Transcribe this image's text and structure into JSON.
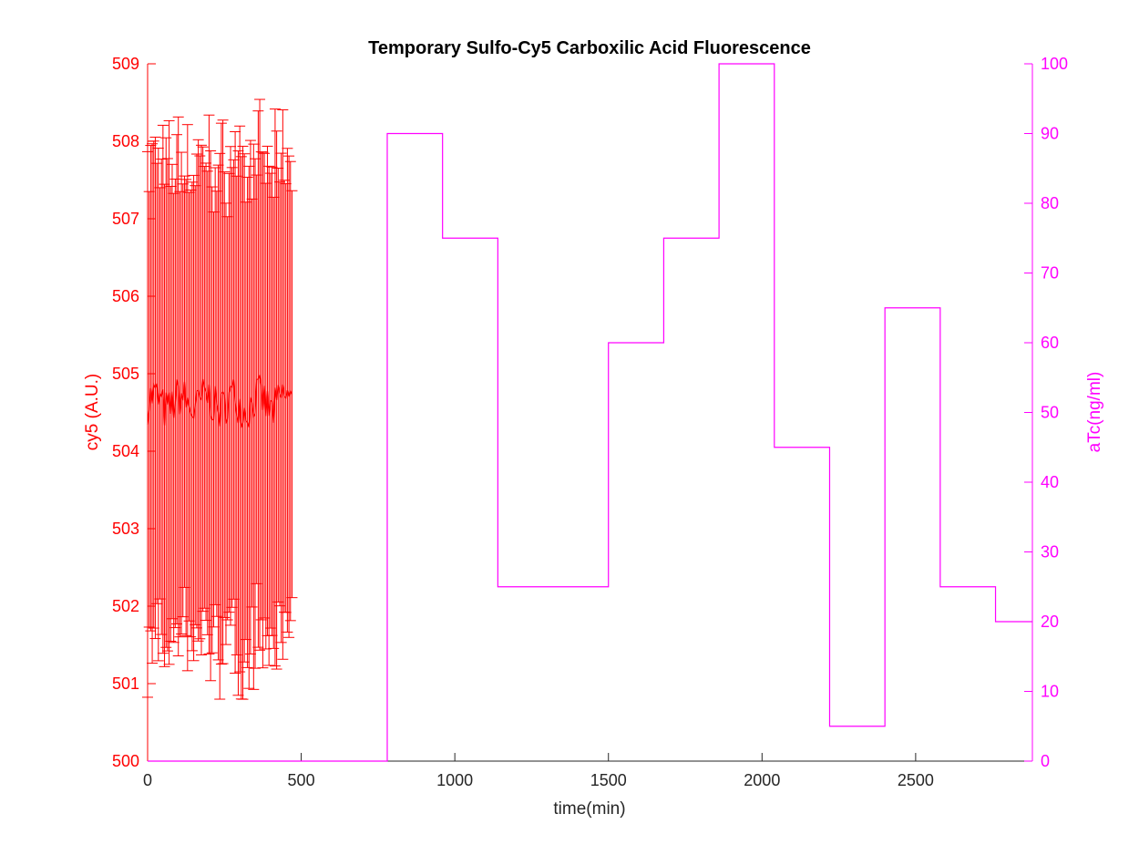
{
  "chart_data": {
    "type": "line",
    "title": "Temporary Sulfo-Cy5 Carboxilic Acid Fluorescence",
    "xlabel": "time(min)",
    "xlim": [
      0,
      2880
    ],
    "xticks": [
      0,
      500,
      1000,
      1500,
      2000,
      2500
    ],
    "x_tick_labels": [
      "0",
      "500",
      "1000",
      "1500",
      "2000",
      "2500"
    ],
    "left_axis": {
      "label": "cy5 (A.U.)",
      "color": "#ff0000",
      "ylim": [
        500,
        509
      ],
      "ticks": [
        500,
        501,
        502,
        503,
        504,
        505,
        506,
        507,
        508,
        509
      ],
      "tick_labels": [
        "500",
        "501",
        "502",
        "503",
        "504",
        "505",
        "506",
        "507",
        "508",
        "509"
      ]
    },
    "right_axis": {
      "label": "aTc(ng/ml)",
      "color": "#ff00ff",
      "ylim": [
        0,
        100
      ],
      "ticks": [
        0,
        10,
        20,
        30,
        40,
        50,
        60,
        70,
        80,
        90,
        100
      ],
      "tick_labels": [
        "0",
        "10",
        "20",
        "30",
        "40",
        "50",
        "60",
        "70",
        "80",
        "90",
        "100"
      ]
    },
    "series": [
      {
        "axis": "left",
        "type": "errorbar-line",
        "color": "#ff0000",
        "x_start": 0,
        "x_step": 5,
        "count": 95,
        "mean_min": 504.1,
        "mean_max": 505.25,
        "mean_center": 504.62,
        "error_min": 2.6,
        "error_max": 3.6
      },
      {
        "axis": "right",
        "type": "step",
        "color": "#ff00ff",
        "x": [
          0,
          780,
          780,
          960,
          960,
          1140,
          1140,
          1500,
          1500,
          1680,
          1680,
          1860,
          1860,
          2040,
          2040,
          2220,
          2220,
          2400,
          2400,
          2580,
          2580,
          2760,
          2760,
          2880
        ],
        "y": [
          0,
          0,
          90,
          90,
          75,
          75,
          25,
          25,
          60,
          60,
          75,
          75,
          100,
          100,
          45,
          45,
          5,
          5,
          65,
          65,
          25,
          25,
          20,
          20
        ]
      }
    ]
  }
}
